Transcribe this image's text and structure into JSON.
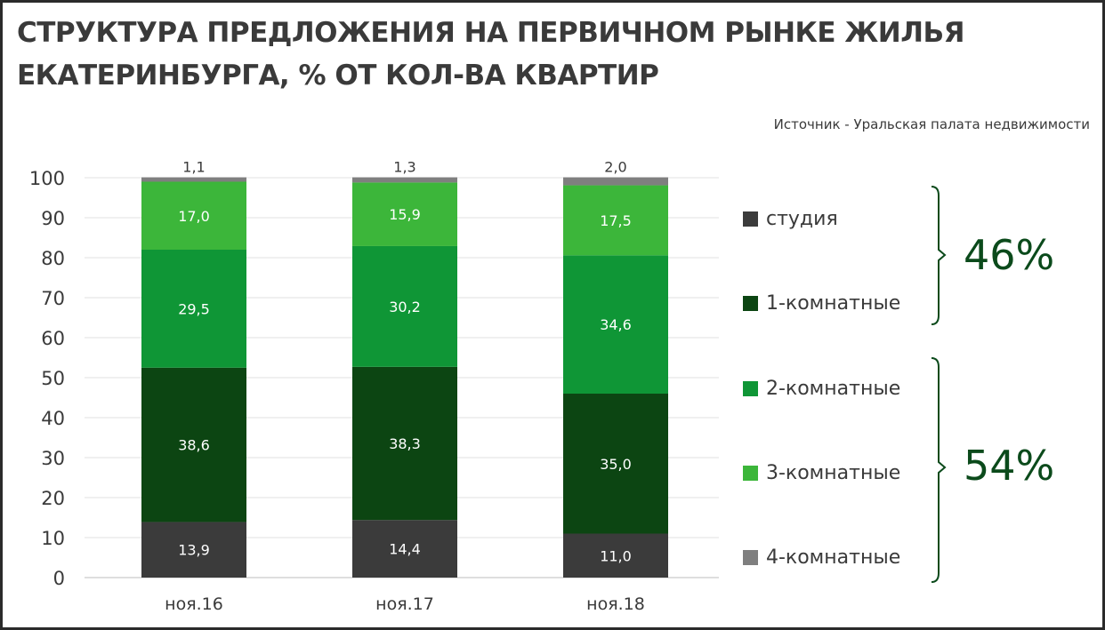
{
  "title_line1": "СТРУКТУРА ПРЕДЛОЖЕНИЯ НА ПЕРВИЧНОМ РЫНКЕ ЖИЛЬЯ",
  "title_line2": "ЕКАТЕРИНБУРГА, % ОТ КОЛ-ВА КВАРТИР",
  "source": "Источник - Уральская  палата недвижимости",
  "groups": [
    {
      "label": "46%",
      "series": [
        "студия",
        "1-комнатные"
      ]
    },
    {
      "label": "54%",
      "series": [
        "2-комнатные",
        "3-комнатные",
        "4-комнатные"
      ]
    }
  ],
  "chart_data": {
    "type": "bar",
    "stacked": true,
    "categories": [
      "ноя.16",
      "ноя.17",
      "ноя.18"
    ],
    "ylim": [
      0,
      100
    ],
    "yticks": [
      0,
      10,
      20,
      30,
      40,
      50,
      60,
      70,
      80,
      90,
      100
    ],
    "grid": true,
    "legend_position": "right",
    "series": [
      {
        "name": "студия",
        "color": "#3b3b3b",
        "values": [
          13.9,
          14.4,
          11.0
        ],
        "labels": [
          "13,9",
          "14,4",
          "11,0"
        ]
      },
      {
        "name": "1-комнатные",
        "color": "#0c4512",
        "values": [
          38.6,
          38.3,
          35.0
        ],
        "labels": [
          "38,6",
          "38,3",
          "35,0"
        ]
      },
      {
        "name": "2-комнатные",
        "color": "#0f9636",
        "values": [
          29.5,
          30.2,
          34.6
        ],
        "labels": [
          "29,5",
          "30,2",
          "34,6"
        ]
      },
      {
        "name": "3-комнатные",
        "color": "#3cb63a",
        "values": [
          17.0,
          15.9,
          17.5
        ],
        "labels": [
          "17,0",
          "15,9",
          "17,5"
        ]
      },
      {
        "name": "4-комнатные",
        "color": "#7f7f7f",
        "values": [
          1.1,
          1.3,
          2.0
        ],
        "labels": [
          "1,1",
          "1,3",
          "2,0"
        ]
      }
    ]
  }
}
